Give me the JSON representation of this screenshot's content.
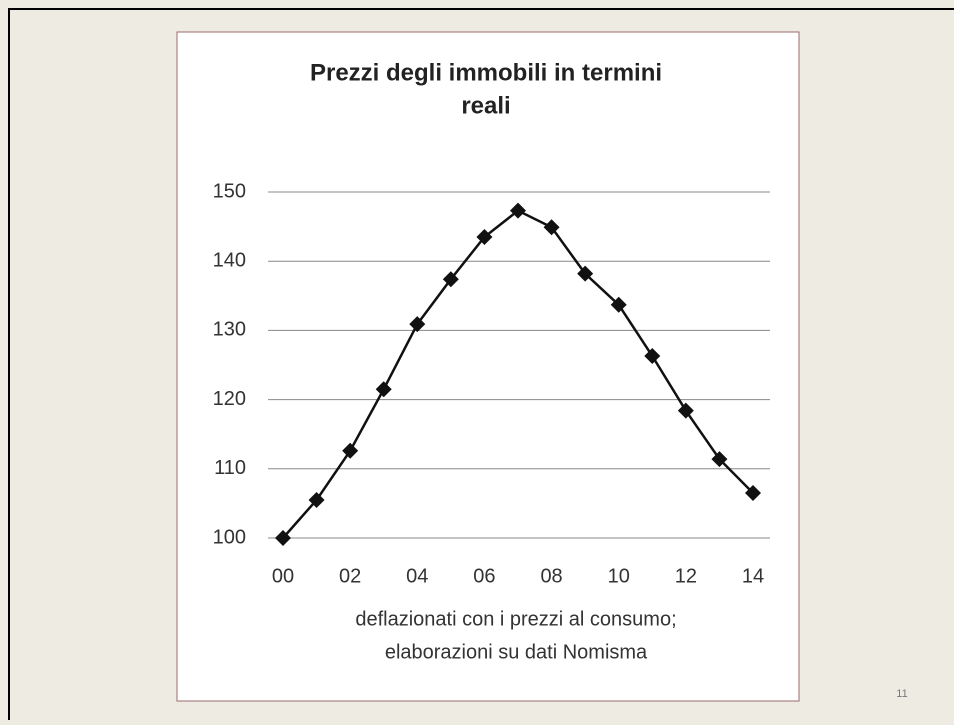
{
  "chart_data": {
    "type": "line",
    "title": [
      "Prezzi degli immobili in termini",
      "reali"
    ],
    "note": [
      "deflazionati con i prezzi al consumo;",
      "elaborazioni su dati Nomisma"
    ],
    "categories": [
      "00",
      null,
      "02",
      null,
      "04",
      null,
      "06",
      null,
      "08",
      null,
      "10",
      null,
      "12",
      null,
      "14"
    ],
    "values": [
      100,
      105.5,
      112.6,
      121.5,
      130.9,
      137.4,
      143.5,
      147.3,
      144.9,
      138.2,
      133.7,
      126.3,
      118.4,
      111.4,
      106.5
    ],
    "color": "#111111",
    "ylim": [
      100,
      150
    ],
    "yticks": [
      100,
      110,
      120,
      130,
      140,
      150
    ],
    "grid": true
  },
  "page_number": "11"
}
